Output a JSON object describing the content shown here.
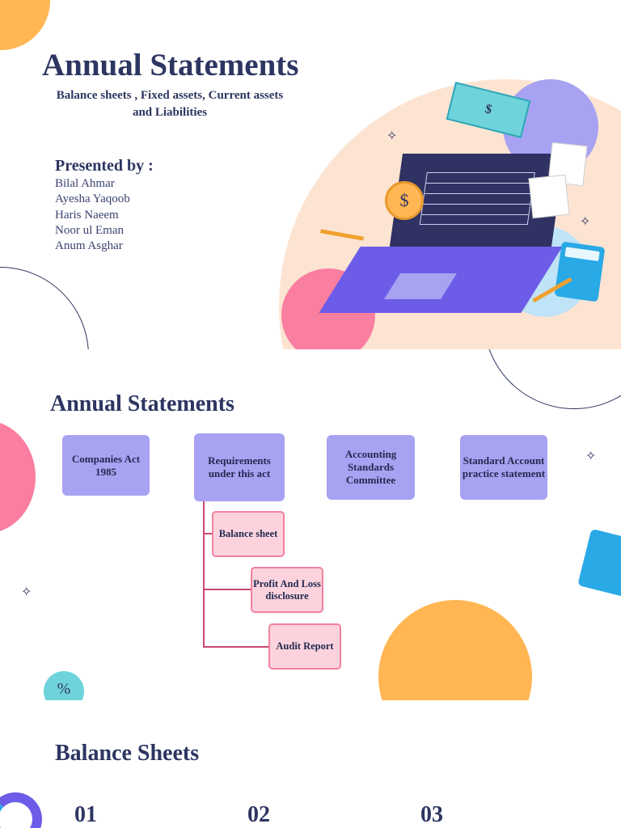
{
  "slide1": {
    "title": "Annual Statements",
    "subtitle": "Balance sheets , Fixed assets, Current assets and Liabilities",
    "presented_by": "Presented by :",
    "presenters": [
      "Bilal Ahmar",
      "Ayesha Yaqoob",
      "Haris Naeem",
      "Noor ul Eman",
      "Anum Asghar"
    ],
    "money_symbol": "$"
  },
  "slide2": {
    "title": "Annual Statements",
    "boxes": [
      "Companies Act 1985",
      "Requirements under this act",
      "Accounting Standards Committee",
      "Standard Account practice statement"
    ],
    "sub_boxes": [
      "Balance sheet",
      "Profit And Loss disclosure",
      "Audit Report"
    ]
  },
  "slide3": {
    "title": "Balance Sheets",
    "numbers": [
      "01",
      "02",
      "03"
    ]
  },
  "colors": {
    "navy": "#2d3561",
    "purple_box": "#a8a2f2",
    "pink_box": "#fcd3dd",
    "pink_border": "#f2809f",
    "orange": "#ffb653",
    "pink": "#f97ea0",
    "peach": "#fde4d2"
  }
}
